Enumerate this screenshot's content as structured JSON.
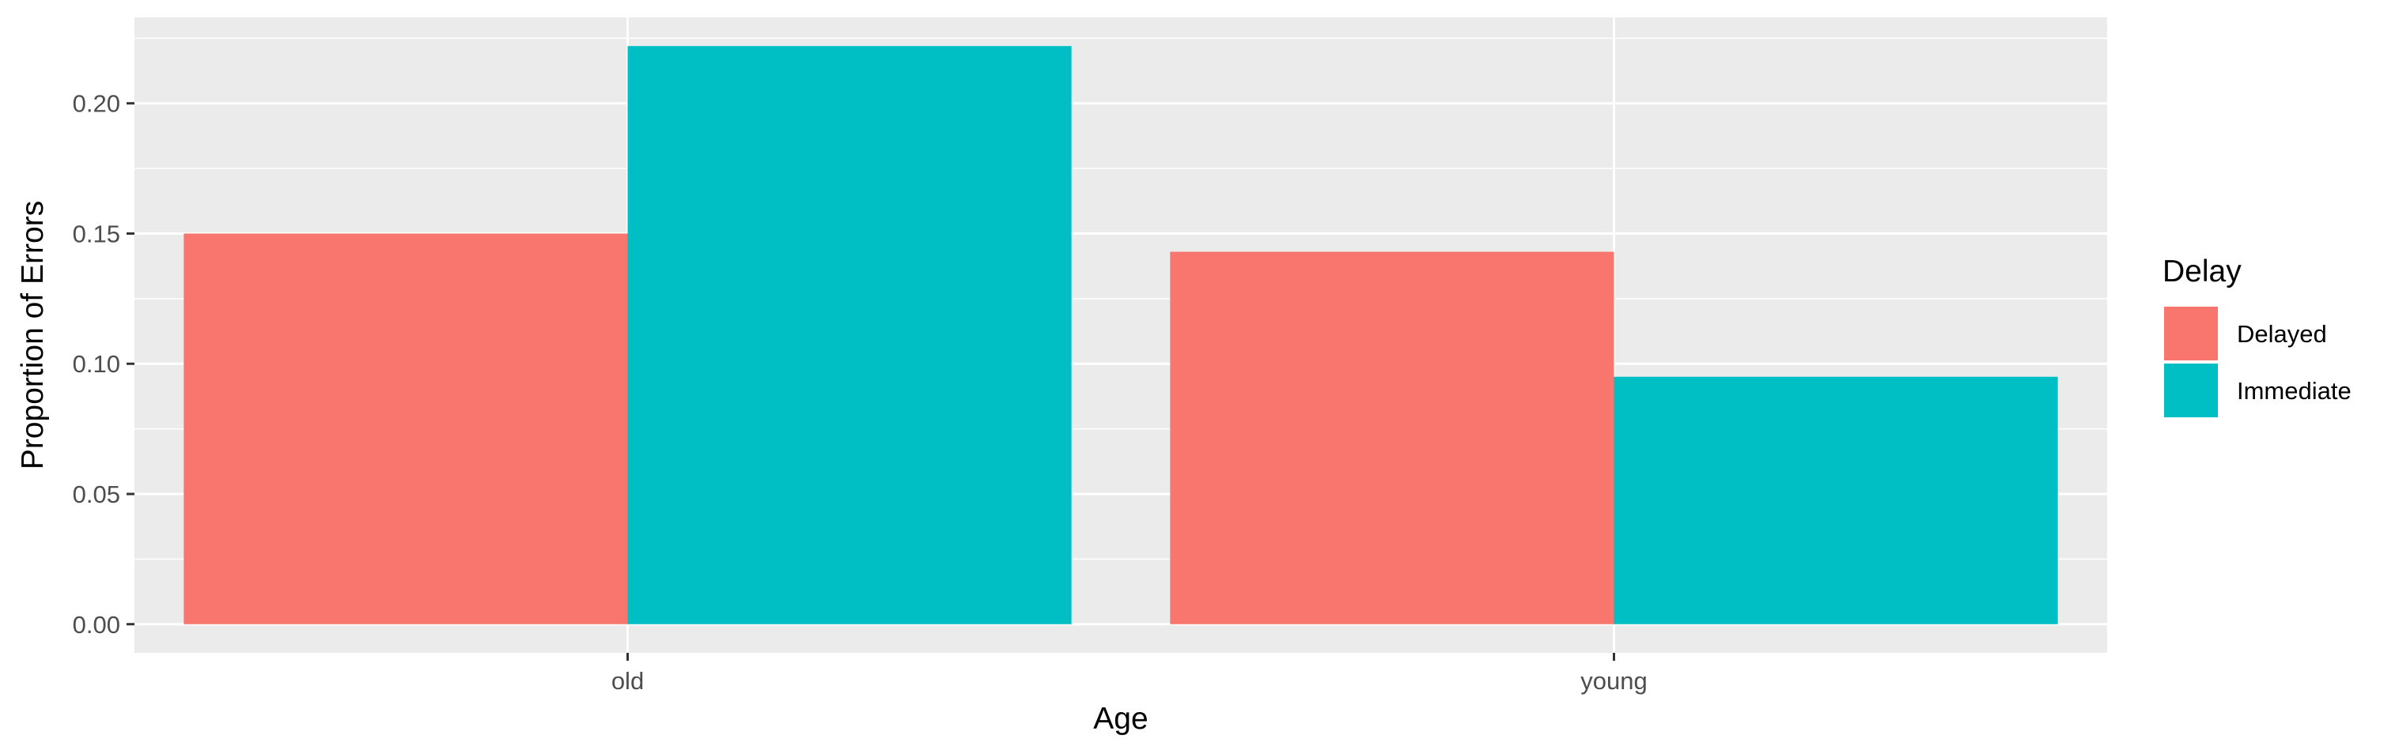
{
  "chart_data": {
    "type": "bar",
    "categories": [
      "old",
      "young"
    ],
    "series": [
      {
        "name": "Delayed",
        "values": [
          0.15,
          0.143
        ],
        "color": "#F8766D"
      },
      {
        "name": "Immediate",
        "values": [
          0.222,
          0.095
        ],
        "color": "#00BFC4"
      }
    ],
    "xlabel": "Age",
    "ylabel": "Proportion of Errors",
    "ylim": [
      -0.011,
      0.233
    ],
    "y_ticks": [
      0.0,
      0.05,
      0.1,
      0.15,
      0.2
    ],
    "y_tick_labels": [
      "0.00",
      "0.05",
      "0.10",
      "0.15",
      "0.20"
    ],
    "legend": {
      "title": "Delay",
      "placement": "right",
      "entries": [
        "Delayed",
        "Immediate"
      ]
    },
    "grid": true,
    "panel_background": "#EBEBEB",
    "grid_color": "#FFFFFF"
  }
}
